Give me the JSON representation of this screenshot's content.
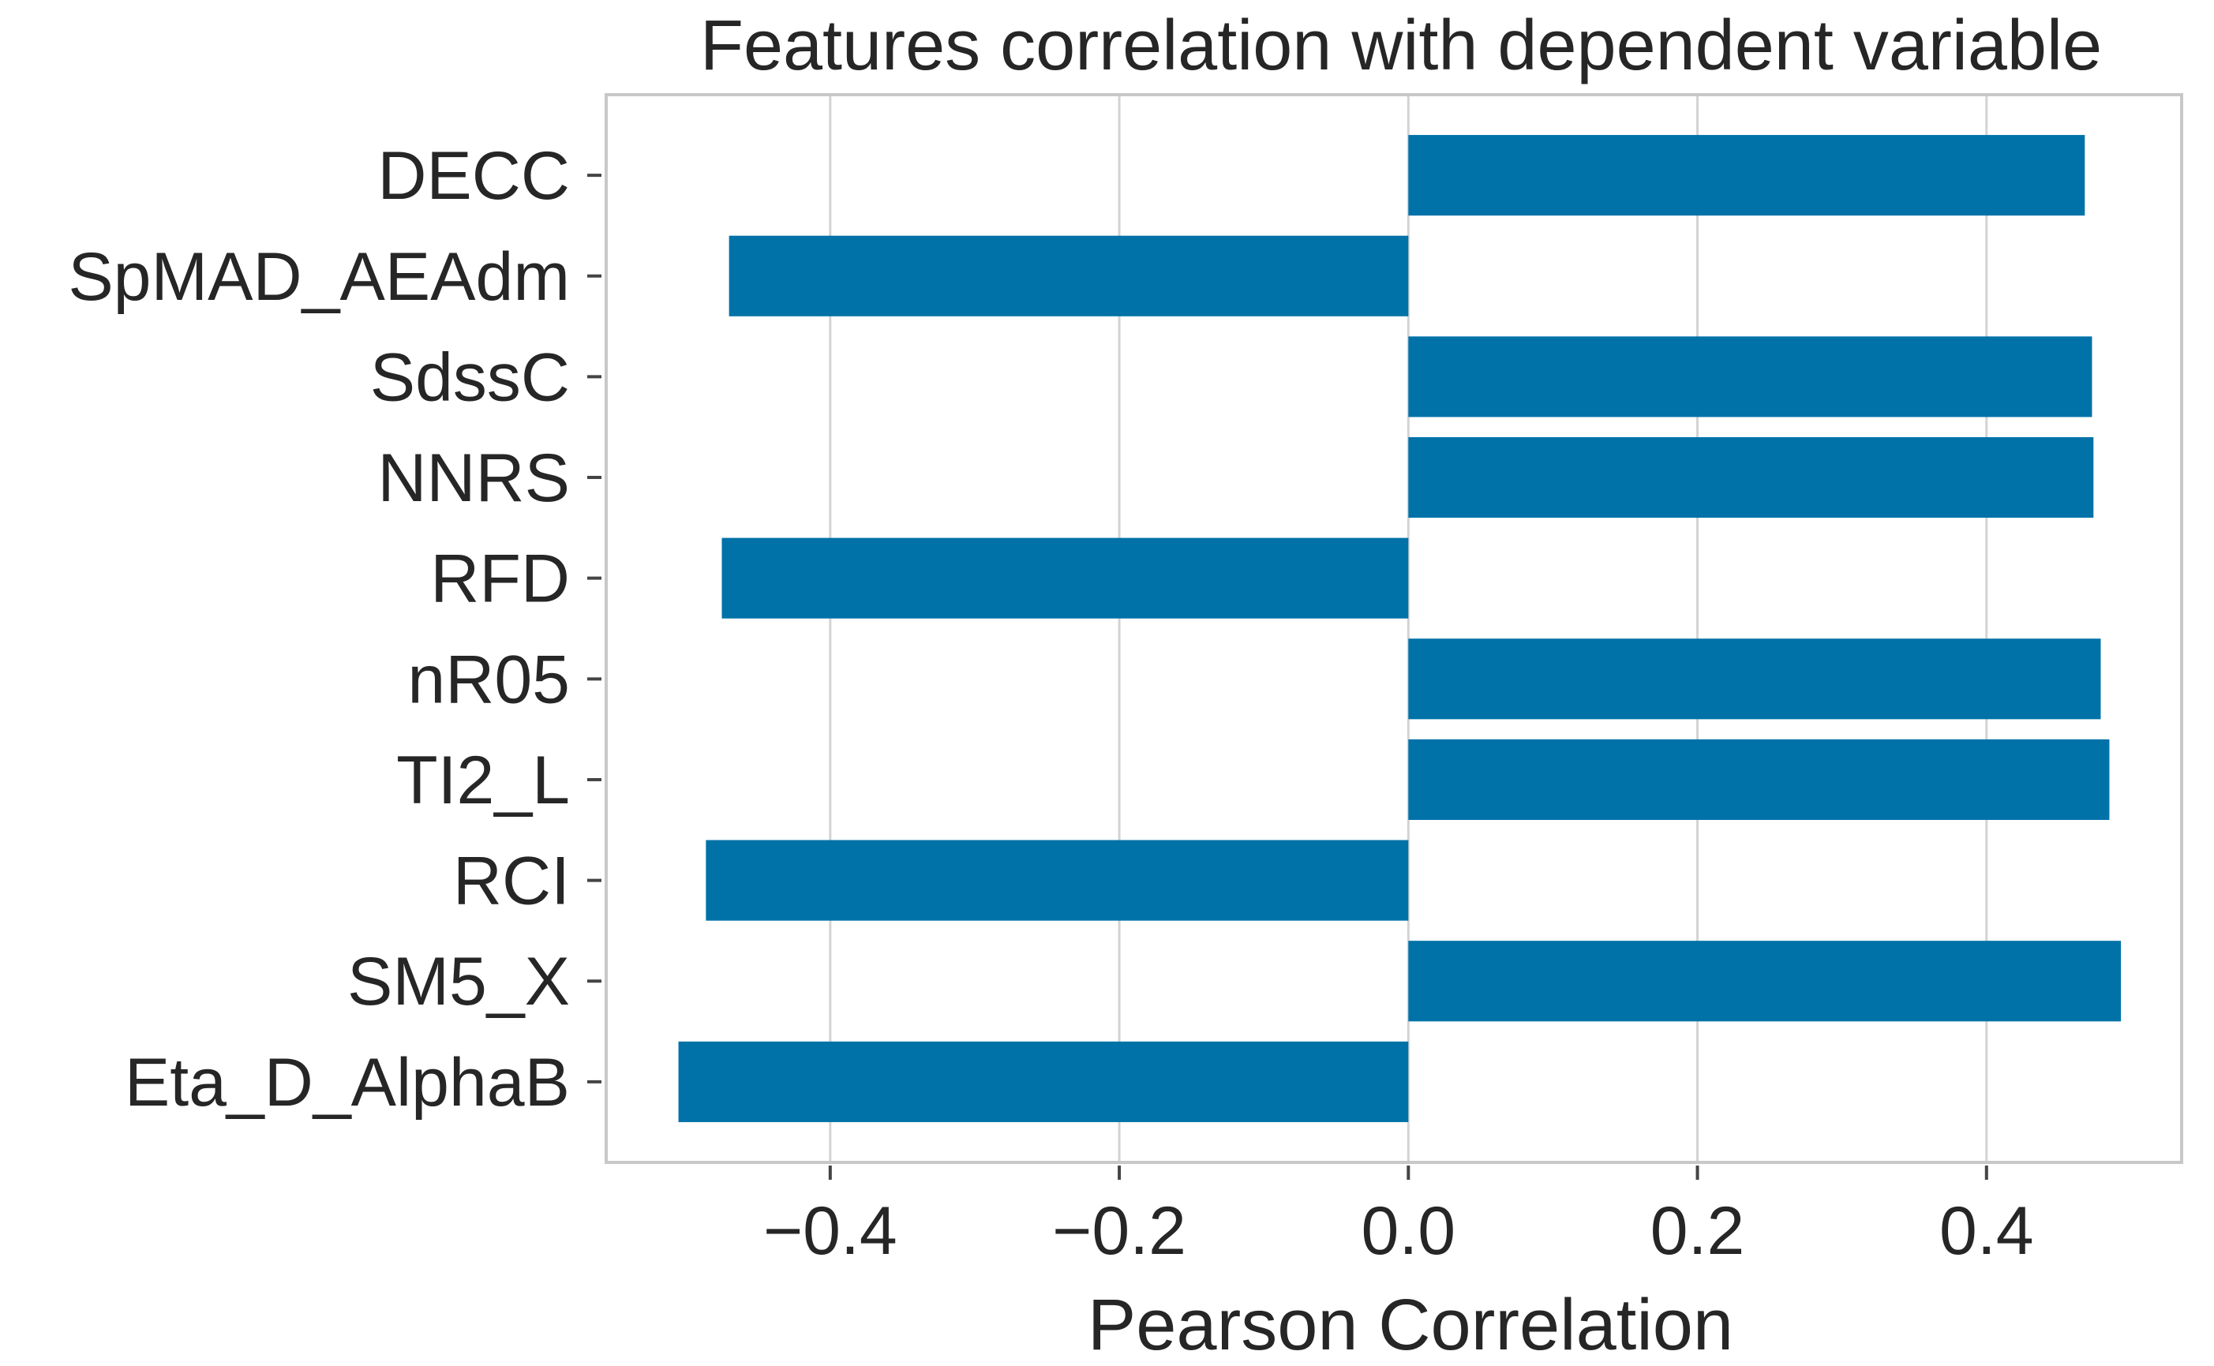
{
  "chart_data": {
    "type": "bar",
    "orientation": "horizontal",
    "title": "Features correlation with dependent variable",
    "xlabel": "Pearson Correlation",
    "ylabel": "",
    "categories": [
      "DECC",
      "SpMAD_AEAdm",
      "SdssC",
      "NNRS",
      "RFD",
      "nR05",
      "TI2_L",
      "RCI",
      "SM5_X",
      "Eta_D_AlphaB"
    ],
    "values": [
      0.468,
      -0.47,
      0.473,
      0.474,
      -0.475,
      0.479,
      0.485,
      -0.486,
      0.493,
      -0.505
    ],
    "xlim": [
      -0.555,
      0.535
    ],
    "xticks": [
      -0.4,
      -0.2,
      0.0,
      0.2,
      0.4
    ],
    "xtick_labels": [
      "−0.4",
      "−0.2",
      "0.0",
      "0.2",
      "0.4"
    ],
    "grid": "vertical",
    "legend": "none",
    "colors": {
      "bar": "#0072a8",
      "grid": "#d3d3d3",
      "frame": "#c8c8c8",
      "text": "#262626"
    }
  }
}
